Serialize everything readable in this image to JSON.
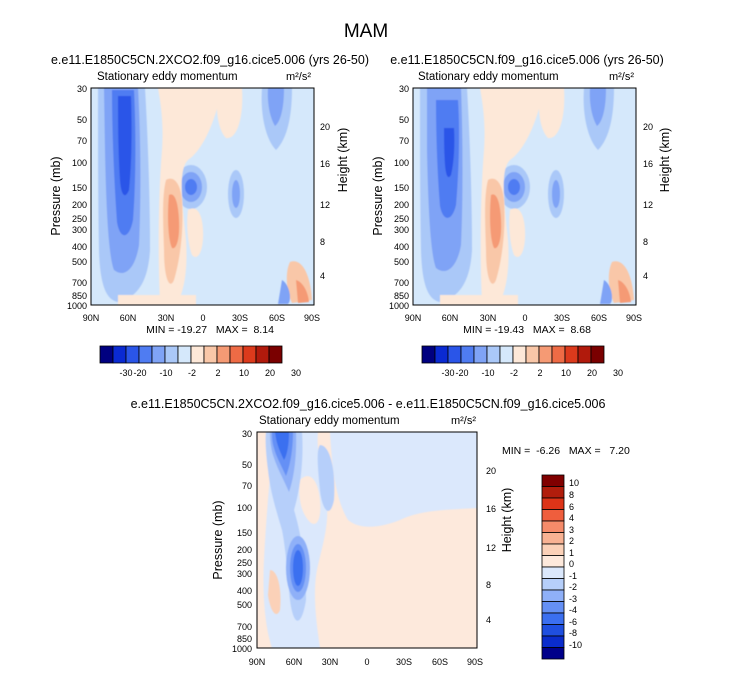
{
  "figure": {
    "title": "MAM",
    "colors": {
      "levels11": [
        "#000080",
        "#0a2ad2",
        "#2a55e8",
        "#4f7cf2",
        "#7fa3f6",
        "#aac8f8",
        "#d5e8fb",
        "#fde8d8",
        "#f9c7a8",
        "#f59a74",
        "#ee6b45",
        "#dc3a1c",
        "#b11a0c",
        "#7a0000"
      ],
      "diffPalette": [
        "#00008a",
        "#0a2ccc",
        "#1f4fe0",
        "#3b6ff0",
        "#6590f5",
        "#8fb0f8",
        "#b6cffa",
        "#dbe8fc",
        "#fde9dc",
        "#fbd1b8",
        "#f8b293",
        "#f58b6a",
        "#ef5e3d",
        "#dd3418",
        "#b11d0c",
        "#800000"
      ]
    }
  },
  "chart_data": [
    {
      "id": "panel-a",
      "type": "contour",
      "title": "e.e11.E1850C5CN.2XCO2.f09_g16.cice5.006 (yrs 26-50)",
      "left_label": "Stationary eddy momentum",
      "units_label": "m²/s²",
      "ylabel": "Pressure (mb)",
      "ylabel_right": "Height (km)",
      "x_ticks": [
        "90N",
        "60N",
        "30N",
        "0",
        "30S",
        "60S",
        "90S"
      ],
      "y_ticks": [
        "30",
        "50",
        "70",
        "100",
        "150",
        "200",
        "250",
        "300",
        "400",
        "500",
        "700",
        "850",
        "1000"
      ],
      "y_right_ticks": [
        "20",
        "16",
        "12",
        "8",
        "4"
      ],
      "stats": "MIN = -19.27   MAX =  8.14",
      "min": -19.27,
      "max": 8.14
    },
    {
      "id": "panel-b",
      "type": "contour",
      "title": "e.e11.E1850C5CN.f09_g16.cice5.006 (yrs 26-50)",
      "left_label": "Stationary eddy momentum",
      "units_label": "m²/s²",
      "ylabel": "Pressure (mb)",
      "ylabel_right": "Height (km)",
      "x_ticks": [
        "90N",
        "60N",
        "30N",
        "0",
        "30S",
        "60S",
        "90S"
      ],
      "y_ticks": [
        "30",
        "50",
        "70",
        "100",
        "150",
        "200",
        "250",
        "300",
        "400",
        "500",
        "700",
        "850",
        "1000"
      ],
      "y_right_ticks": [
        "20",
        "16",
        "12",
        "8",
        "4"
      ],
      "stats": "MIN = -19.43   MAX =  8.68",
      "min": -19.43,
      "max": 8.68
    },
    {
      "id": "panel-c",
      "type": "contour",
      "title": "e.e11.E1850C5CN.2XCO2.f09_g16.cice5.006 - e.e11.E1850C5CN.f09_g16.cice5.006",
      "left_label": "Stationary eddy momentum",
      "units_label": "m²/s²",
      "ylabel": "Pressure (mb)",
      "ylabel_right": "Height (km)",
      "x_ticks": [
        "90N",
        "60N",
        "30N",
        "0",
        "30S",
        "60S",
        "90S"
      ],
      "y_ticks": [
        "30",
        "50",
        "70",
        "100",
        "150",
        "200",
        "250",
        "300",
        "400",
        "500",
        "700",
        "850",
        "1000"
      ],
      "y_right_ticks": [
        "20",
        "16",
        "12",
        "8",
        "4"
      ],
      "stats": "MIN =  -6.26   MAX =   7.20",
      "min": -6.26,
      "max": 7.2
    }
  ],
  "colorbar_horizontal": {
    "labels": [
      "-30",
      "-20",
      "-10",
      "-2",
      "2",
      "10",
      "20",
      "30"
    ]
  },
  "colorbar_vertical": {
    "labels": [
      "10",
      "8",
      "6",
      "4",
      "3",
      "2",
      "1",
      "0",
      "-1",
      "-2",
      "-3",
      "-4",
      "-6",
      "-8",
      "-10"
    ]
  }
}
